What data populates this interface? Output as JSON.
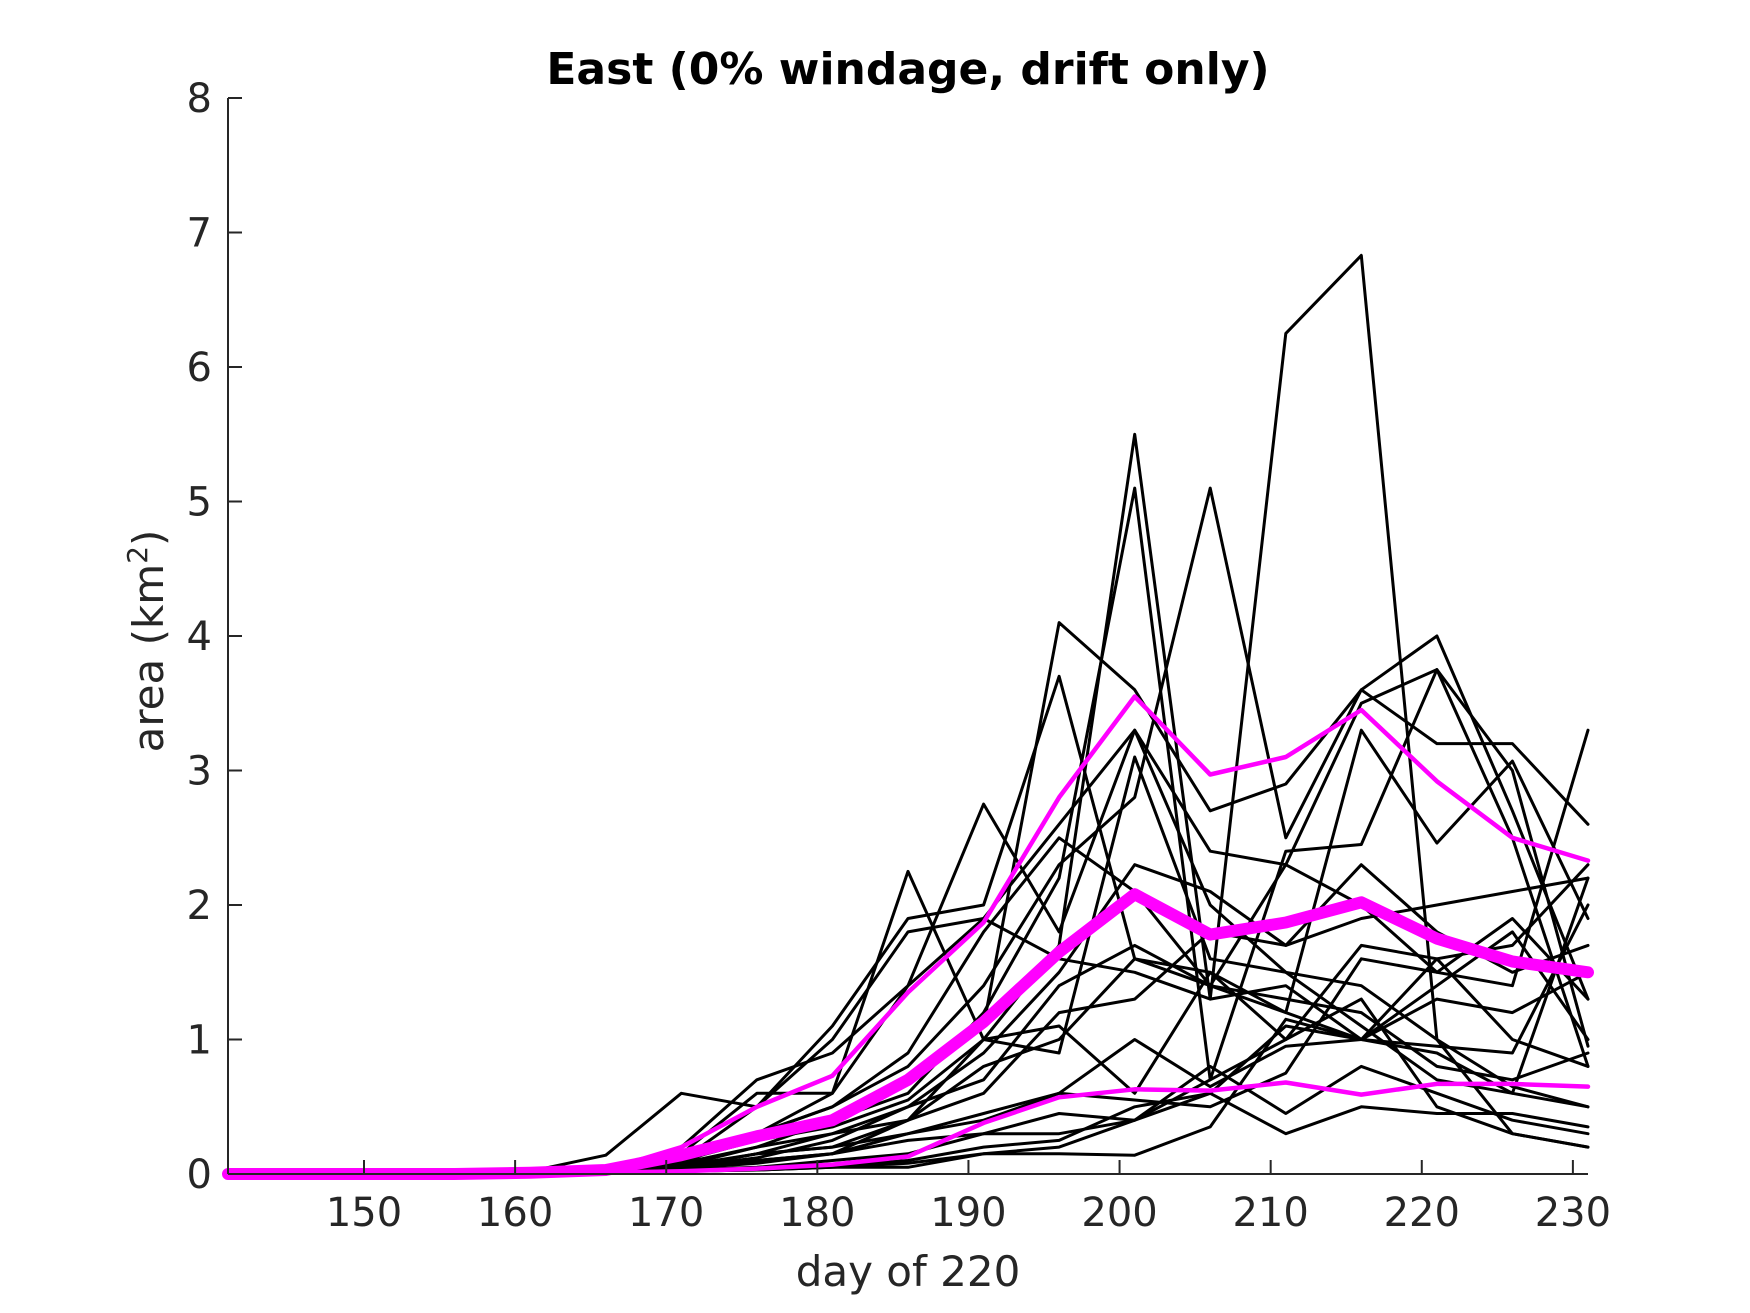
{
  "chart_data": {
    "type": "line",
    "title": "East (0% windage, drift only)",
    "xlabel": "day of 220",
    "ylabel_main": "area (km",
    "ylabel_sup": "2",
    "ylabel_close": ")",
    "xlim": [
      141,
      231
    ],
    "ylim": [
      0,
      8
    ],
    "xticks": [
      150,
      160,
      170,
      180,
      190,
      200,
      210,
      220,
      230
    ],
    "yticks": [
      0,
      1,
      2,
      3,
      4,
      5,
      6,
      7,
      8
    ],
    "grid": false,
    "legend": "none",
    "x": [
      141,
      146,
      151,
      156,
      161,
      166,
      171,
      176,
      181,
      186,
      191,
      196,
      201,
      206,
      211,
      216,
      221,
      226,
      231
    ],
    "series": [
      {
        "role": "member",
        "color": "#000000",
        "values": [
          0,
          0,
          0,
          0,
          0.01,
          0.04,
          0.12,
          0.25,
          0.35,
          0.55,
          1.0,
          1.7,
          5.5,
          1.3,
          6.25,
          6.83,
          1.0,
          0.65,
          0.5
        ]
      },
      {
        "role": "member",
        "color": "#000000",
        "values": [
          0,
          0,
          0,
          0,
          0.01,
          0.03,
          0.1,
          0.25,
          0.4,
          0.6,
          1.2,
          2.2,
          5.1,
          0.7,
          2.4,
          2.45,
          3.75,
          3.0,
          0.95
        ]
      },
      {
        "role": "member",
        "color": "#000000",
        "values": [
          0,
          0,
          0,
          0,
          0.01,
          0.03,
          0.1,
          0.3,
          0.5,
          0.8,
          1.4,
          2.3,
          2.8,
          5.1,
          2.5,
          3.6,
          4.0,
          2.7,
          1.3
        ]
      },
      {
        "role": "member",
        "color": "#000000",
        "values": [
          0,
          0,
          0,
          0,
          0.01,
          0.02,
          0.08,
          0.2,
          0.4,
          0.7,
          1.1,
          4.1,
          3.6,
          2.7,
          2.9,
          3.6,
          3.2,
          3.2,
          2.6
        ]
      },
      {
        "role": "member",
        "color": "#000000",
        "values": [
          0,
          0,
          0,
          0,
          0.01,
          0.02,
          0.1,
          0.3,
          0.6,
          1.4,
          2.75,
          1.8,
          3.3,
          2.4,
          2.3,
          3.5,
          3.75,
          2.5,
          0.8
        ]
      },
      {
        "role": "member",
        "color": "#000000",
        "values": [
          0,
          0,
          0,
          0,
          0.02,
          0.14,
          0.6,
          0.5,
          1.1,
          1.9,
          2.0,
          3.7,
          1.6,
          1.5,
          1.2,
          3.3,
          2.46,
          3.07,
          1.9
        ]
      },
      {
        "role": "member",
        "color": "#000000",
        "values": [
          0,
          0,
          0,
          0,
          0.01,
          0.03,
          0.2,
          0.7,
          0.9,
          1.4,
          1.9,
          2.6,
          3.3,
          2.0,
          1.5,
          1.1,
          0.7,
          0.6,
          2.2
        ]
      },
      {
        "role": "member",
        "color": "#000000",
        "values": [
          0,
          0,
          0,
          0,
          0.01,
          0.03,
          0.15,
          0.6,
          0.6,
          2.25,
          1.0,
          0.9,
          3.1,
          1.6,
          1.5,
          1.4,
          1.0,
          0.3,
          0.2
        ]
      },
      {
        "role": "member",
        "color": "#000000",
        "values": [
          0,
          0,
          0,
          0,
          0.01,
          0.02,
          0.08,
          0.3,
          0.5,
          0.9,
          1.8,
          2.5,
          2.1,
          1.4,
          1.2,
          1.0,
          0.9,
          0.6,
          0.5
        ]
      },
      {
        "role": "member",
        "color": "#000000",
        "values": [
          0,
          0,
          0,
          0,
          0.01,
          0.02,
          0.1,
          0.5,
          1.0,
          1.8,
          1.9,
          1.6,
          1.5,
          1.3,
          1.4,
          1.0,
          1.6,
          1.7,
          2.3
        ]
      },
      {
        "role": "member",
        "color": "#000000",
        "values": [
          0,
          0,
          0,
          0,
          0.01,
          0.02,
          0.06,
          0.2,
          0.3,
          0.5,
          0.7,
          1.4,
          1.7,
          1.4,
          2.3,
          2.0,
          1.5,
          1.4,
          3.3
        ]
      },
      {
        "role": "member",
        "color": "#000000",
        "values": [
          0,
          0,
          0,
          0,
          0.01,
          0.02,
          0.06,
          0.15,
          0.2,
          0.4,
          0.6,
          1.2,
          1.3,
          1.8,
          1.7,
          1.9,
          2.0,
          2.1,
          2.2
        ]
      },
      {
        "role": "member",
        "color": "#000000",
        "values": [
          0,
          0,
          0,
          0,
          0.01,
          0.02,
          0.05,
          0.15,
          0.3,
          0.4,
          1.0,
          1.1,
          0.6,
          1.5,
          1.0,
          1.3,
          0.5,
          0.3,
          0.2
        ]
      },
      {
        "role": "member",
        "color": "#000000",
        "values": [
          0,
          0,
          0,
          0,
          0.01,
          0.02,
          0.05,
          0.15,
          0.2,
          0.3,
          0.45,
          0.6,
          1.0,
          0.65,
          0.95,
          1.0,
          1.4,
          1.8,
          1.0
        ]
      },
      {
        "role": "member",
        "color": "#000000",
        "values": [
          0,
          0,
          0,
          0,
          0.01,
          0.02,
          0.05,
          0.1,
          0.15,
          0.3,
          0.4,
          0.6,
          0.55,
          0.5,
          0.75,
          1.6,
          1.5,
          1.9,
          1.3
        ]
      },
      {
        "role": "member",
        "color": "#000000",
        "values": [
          0,
          0,
          0,
          0,
          0.01,
          0.02,
          0.04,
          0.1,
          0.15,
          0.25,
          0.3,
          0.45,
          0.4,
          0.8,
          0.45,
          0.8,
          0.6,
          0.4,
          0.3
        ]
      },
      {
        "role": "member",
        "color": "#000000",
        "values": [
          0,
          0,
          0,
          0,
          0.01,
          0.01,
          0.03,
          0.05,
          0.1,
          0.15,
          0.3,
          0.3,
          0.4,
          0.6,
          0.3,
          0.5,
          0.45,
          0.45,
          0.35
        ]
      },
      {
        "role": "member",
        "color": "#000000",
        "values": [
          0,
          0,
          0,
          0,
          0,
          0.01,
          0.02,
          0.03,
          0.05,
          0.05,
          0.15,
          0.15,
          0.14,
          0.35,
          1.15,
          1.0,
          1.3,
          1.2,
          1.5
        ]
      },
      {
        "role": "member",
        "color": "#000000",
        "values": [
          0,
          0,
          0,
          0,
          0,
          0.01,
          0.02,
          0.04,
          0.06,
          0.1,
          0.2,
          0.25,
          0.5,
          0.6,
          1.1,
          1.0,
          0.95,
          0.9,
          2.0
        ]
      },
      {
        "role": "member",
        "color": "#000000",
        "values": [
          0,
          0,
          0,
          0,
          0,
          0.01,
          0.02,
          0.03,
          0.05,
          0.08,
          0.15,
          0.2,
          0.4,
          0.7,
          1.0,
          1.7,
          1.6,
          1.0,
          0.8
        ]
      },
      {
        "role": "member",
        "color": "#000000",
        "values": [
          0,
          0,
          0,
          0,
          0.01,
          0.02,
          0.04,
          0.08,
          0.15,
          0.4,
          0.8,
          1.0,
          1.6,
          1.4,
          1.3,
          1.2,
          0.8,
          0.7,
          0.9
        ]
      },
      {
        "role": "member",
        "color": "#000000",
        "values": [
          0,
          0,
          0,
          0,
          0.01,
          0.02,
          0.05,
          0.12,
          0.25,
          0.5,
          0.9,
          1.5,
          2.3,
          2.1,
          1.7,
          2.3,
          1.8,
          1.5,
          1.7
        ]
      },
      {
        "role": "envelope",
        "color": "#ff00ff",
        "width": 4.5,
        "values": [
          0,
          0,
          0,
          0,
          0.01,
          0.03,
          0.2,
          0.5,
          0.73,
          1.35,
          1.87,
          2.8,
          3.55,
          2.97,
          3.1,
          3.45,
          2.92,
          2.5,
          2.33
        ]
      },
      {
        "role": "mean",
        "color": "#ff00ff",
        "width": 12,
        "values": [
          0,
          0,
          0,
          0,
          0.01,
          0.03,
          0.14,
          0.28,
          0.4,
          0.7,
          1.13,
          1.65,
          2.08,
          1.78,
          1.87,
          2.02,
          1.75,
          1.58,
          1.5
        ]
      },
      {
        "role": "envelope",
        "color": "#ff00ff",
        "width": 4.5,
        "values": [
          0,
          0,
          0,
          0,
          0,
          0.01,
          0.02,
          0.04,
          0.07,
          0.13,
          0.38,
          0.57,
          0.63,
          0.62,
          0.68,
          0.59,
          0.67,
          0.67,
          0.65
        ]
      }
    ]
  }
}
